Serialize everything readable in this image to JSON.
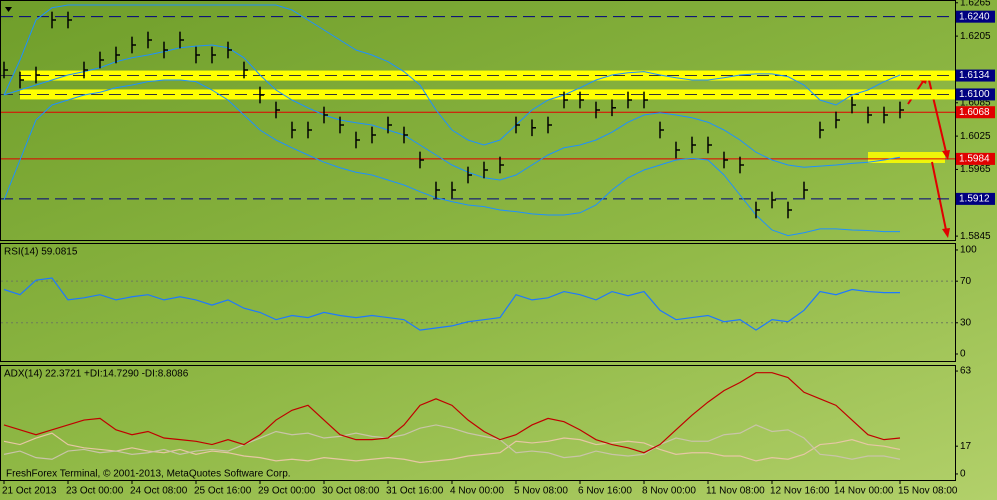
{
  "chart_data": [
    {
      "type": "ohlc",
      "categories": [
        "21 Oct 2013",
        null,
        null,
        null,
        "23 Oct 00:00",
        null,
        null,
        null,
        "24 Oct 08:00",
        null,
        null,
        null,
        "25 Oct 16:00",
        null,
        null,
        null,
        "29 Oct 00:00",
        null,
        null,
        null,
        "30 Oct 08:00",
        null,
        null,
        null,
        "31 Oct 16:00",
        null,
        null,
        null,
        "4 Nov 00:00",
        null,
        null,
        null,
        "5 Nov 08:00",
        null,
        null,
        null,
        "6 Nov 16:00",
        null,
        null,
        null,
        "8 Nov 00:00",
        null,
        null,
        null,
        "11 Nov 08:00",
        null,
        null,
        null,
        "12 Nov 16:00",
        null,
        null,
        null,
        "14 Nov 00:00",
        null,
        null,
        null,
        "15 Nov 08:00"
      ],
      "high": [
        1.6159,
        1.6141,
        1.615,
        1.6249,
        1.6249,
        1.6159,
        1.6177,
        1.6186,
        1.6204,
        1.6213,
        1.6195,
        1.6213,
        1.6186,
        1.6186,
        1.6195,
        1.6159,
        1.6114,
        1.6087,
        1.6051,
        1.6051,
        1.6078,
        1.606,
        1.6033,
        1.6042,
        1.606,
        1.6042,
        1.5997,
        1.5943,
        1.5943,
        1.597,
        1.5979,
        1.5988,
        1.606,
        1.6055,
        1.606,
        1.6105,
        1.6105,
        1.6087,
        1.6091,
        1.6105,
        1.6105,
        1.6051,
        1.6015,
        1.6024,
        1.6024,
        1.5997,
        1.5988,
        1.5907,
        1.5925,
        1.5907,
        1.5943,
        1.6051,
        1.6069,
        1.6096,
        1.6078,
        1.6078,
        1.6087
      ],
      "low": [
        1.6129,
        1.6111,
        1.612,
        1.6219,
        1.6219,
        1.6129,
        1.6147,
        1.6156,
        1.6174,
        1.6183,
        1.6165,
        1.6183,
        1.6156,
        1.6156,
        1.6165,
        1.6129,
        1.6084,
        1.6057,
        1.6021,
        1.6021,
        1.6048,
        1.603,
        1.6003,
        1.6012,
        1.603,
        1.6012,
        1.5967,
        1.5913,
        1.5913,
        1.594,
        1.5949,
        1.5958,
        1.603,
        1.6025,
        1.603,
        1.6075,
        1.6075,
        1.6057,
        1.6061,
        1.6075,
        1.6075,
        1.6021,
        1.5985,
        1.5994,
        1.5994,
        1.5967,
        1.5958,
        1.5877,
        1.5895,
        1.5877,
        1.5913,
        1.6021,
        1.6039,
        1.6066,
        1.6048,
        1.6048,
        1.6057
      ],
      "close": [
        1.6144,
        1.6126,
        1.6135,
        1.6234,
        1.6234,
        1.6144,
        1.6162,
        1.6171,
        1.6189,
        1.6198,
        1.618,
        1.6198,
        1.6171,
        1.6171,
        1.618,
        1.6144,
        1.6099,
        1.6072,
        1.6036,
        1.6036,
        1.6063,
        1.6045,
        1.6018,
        1.6027,
        1.6045,
        1.6027,
        1.5982,
        1.5928,
        1.5928,
        1.5955,
        1.5964,
        1.5973,
        1.6045,
        1.604,
        1.6045,
        1.609,
        1.609,
        1.6072,
        1.6076,
        1.609,
        1.609,
        1.6036,
        1.6,
        1.6009,
        1.6009,
        1.5982,
        1.5973,
        1.5892,
        1.591,
        1.5892,
        1.5928,
        1.6036,
        1.6054,
        1.6081,
        1.6063,
        1.6063,
        1.6072
      ],
      "bar_color": "#000000",
      "series": [
        {
          "color": "#1e90ff",
          "values": [
            1.6099,
            1.6162,
            1.6234,
            1.6256,
            1.6261,
            1.6261,
            1.6261,
            1.6261,
            1.6261,
            1.6261,
            1.6261,
            1.6261,
            1.6261,
            1.6261,
            1.6261,
            1.6261,
            1.6261,
            1.6261,
            1.6252,
            1.6234,
            1.6216,
            1.6198,
            1.618,
            1.6171,
            1.6159,
            1.6141,
            1.6117,
            1.6072,
            1.6036,
            1.6018,
            1.6009,
            1.6018,
            1.6045,
            1.6072,
            1.609,
            1.6099,
            1.6112,
            1.6126,
            1.6135,
            1.6139,
            1.6141,
            1.6135,
            1.613,
            1.6126,
            1.6126,
            1.613,
            1.6135,
            1.6137,
            1.6137,
            1.6132,
            1.6117,
            1.609,
            1.6081,
            1.6099,
            1.6108,
            1.6123,
            1.6135
          ]
        },
        {
          "color": "#1e90ff",
          "values": [
            1.6099,
            1.6108,
            1.6117,
            1.6126,
            1.6135,
            1.6141,
            1.6148,
            1.6159,
            1.6166,
            1.6171,
            1.6177,
            1.6184,
            1.6187,
            1.6189,
            1.6184,
            1.6166,
            1.6135,
            1.6108,
            1.609,
            1.6076,
            1.6063,
            1.6054,
            1.6049,
            1.6045,
            1.6036,
            1.6027,
            1.6009,
            1.5991,
            1.5973,
            1.596,
            1.595,
            1.5946,
            1.5955,
            1.5973,
            1.5991,
            1.6004,
            1.6009,
            1.6018,
            1.6032,
            1.605,
            1.6063,
            1.6067,
            1.6063,
            1.6058,
            1.605,
            1.6036,
            1.6018,
            1.5996,
            1.5982,
            1.5973,
            1.5969,
            1.5971,
            1.5973,
            1.5976,
            1.5978,
            1.5982,
            1.5987
          ]
        },
        {
          "color": "#1e90ff",
          "values": [
            1.591,
            1.5982,
            1.6054,
            1.6081,
            1.609,
            1.6099,
            1.6104,
            1.6112,
            1.6117,
            1.6123,
            1.6126,
            1.6126,
            1.6123,
            1.6108,
            1.609,
            1.6063,
            1.6036,
            1.6018,
            1.6004,
            1.5991,
            1.5978,
            1.5968,
            1.596,
            1.5955,
            1.5946,
            1.5937,
            1.5925,
            1.5914,
            1.5907,
            1.5901,
            1.5898,
            1.5892,
            1.5889,
            1.5885,
            1.5883,
            1.5883,
            1.5887,
            1.5901,
            1.5928,
            1.595,
            1.5964,
            1.5973,
            1.5982,
            1.5985,
            1.5982,
            1.5955,
            1.5919,
            1.5883,
            1.5856,
            1.5846,
            1.5851,
            1.5858,
            1.5858,
            1.5856,
            1.5855,
            1.5853,
            1.5853
          ]
        }
      ],
      "ylim": [
        1.5838,
        1.627
      ],
      "yticks": [
        1.6265,
        1.6205,
        1.6085,
        1.6025,
        1.5965,
        1.5845
      ],
      "levels": [
        {
          "value": 1.624,
          "label": "1.6240",
          "color": "#000080",
          "style": "dash"
        },
        {
          "value": 1.6134,
          "label": "1.6134",
          "color": "#000080",
          "style": "band",
          "band_color": "#ffff00"
        },
        {
          "value": 1.61,
          "label": "1.6100",
          "color": "#000080",
          "style": "band",
          "band_color": "#ffff00"
        },
        {
          "value": 1.6068,
          "label": "1.6068",
          "color": "#e00000",
          "style": "solid"
        },
        {
          "value": 1.5984,
          "label": "1.5984",
          "color": "#e00000",
          "style": "solid"
        },
        {
          "value": 1.5912,
          "label": "1.5912",
          "color": "#000080",
          "style": "dash"
        }
      ]
    },
    {
      "type": "line",
      "title": "RSI(14) 59.0815",
      "series": [
        {
          "color": "#1e78ff",
          "values": [
            62,
            57,
            71,
            73,
            52,
            54,
            57,
            52,
            55,
            57,
            52,
            55,
            52,
            47,
            52,
            44,
            40,
            33,
            37,
            35,
            40,
            37,
            35,
            37,
            35,
            33,
            23,
            25,
            27,
            31,
            33,
            35,
            57,
            52,
            54,
            60,
            57,
            52,
            60,
            56,
            60,
            42,
            33,
            35,
            37,
            31,
            33,
            23,
            33,
            31,
            42,
            60,
            57,
            62,
            60,
            59,
            59
          ]
        }
      ],
      "ylim": [
        -7.7,
        106.7
      ],
      "yticks": [
        100,
        70,
        30,
        0
      ],
      "levels": [
        70,
        30
      ]
    },
    {
      "type": "line",
      "title": "ADX(14) 22.3721 +DI:14.7290 -DI:8.8086",
      "series": [
        {
          "color": "#e6c7a4",
          "values": [
            20,
            18,
            22,
            25,
            18,
            16,
            15,
            14,
            16,
            14,
            13,
            15,
            12,
            14,
            13,
            11,
            10,
            8,
            9,
            8,
            10,
            9,
            8,
            9,
            10,
            9,
            7,
            8,
            9,
            11,
            12,
            13,
            20,
            19,
            20,
            22,
            21,
            18,
            19,
            20,
            19,
            15,
            12,
            13,
            13,
            11,
            11,
            8,
            10,
            9,
            12,
            18,
            19,
            21,
            18,
            17,
            15
          ]
        },
        {
          "color": "#c9c4a8",
          "values": [
            12,
            14,
            10,
            9,
            14,
            15,
            13,
            14,
            12,
            13,
            15,
            12,
            14,
            15,
            14,
            18,
            22,
            26,
            24,
            25,
            22,
            23,
            25,
            23,
            22,
            24,
            28,
            30,
            28,
            25,
            23,
            21,
            13,
            14,
            13,
            10,
            11,
            14,
            12,
            11,
            12,
            18,
            22,
            20,
            20,
            24,
            25,
            30,
            26,
            27,
            22,
            12,
            11,
            9,
            11,
            11,
            9
          ]
        },
        {
          "color": "#c00000",
          "values": [
            30,
            27,
            24,
            27,
            30,
            33,
            34,
            27,
            24,
            26,
            22,
            21,
            20,
            18,
            21,
            18,
            24,
            33,
            39,
            42,
            33,
            24,
            21,
            21,
            22,
            30,
            42,
            46,
            42,
            33,
            26,
            21,
            24,
            30,
            34,
            32,
            27,
            21,
            18,
            16,
            13,
            18,
            27,
            36,
            44,
            51,
            56,
            62,
            62,
            59,
            50,
            46,
            42,
            33,
            24,
            21,
            22
          ]
        }
      ],
      "ylim": [
        -3.7,
        66.7
      ],
      "yticks": [
        63,
        17,
        0
      ]
    }
  ],
  "footer": "FreshForex Terminal, © 2001-2013, MetaQuotes Software Corp."
}
